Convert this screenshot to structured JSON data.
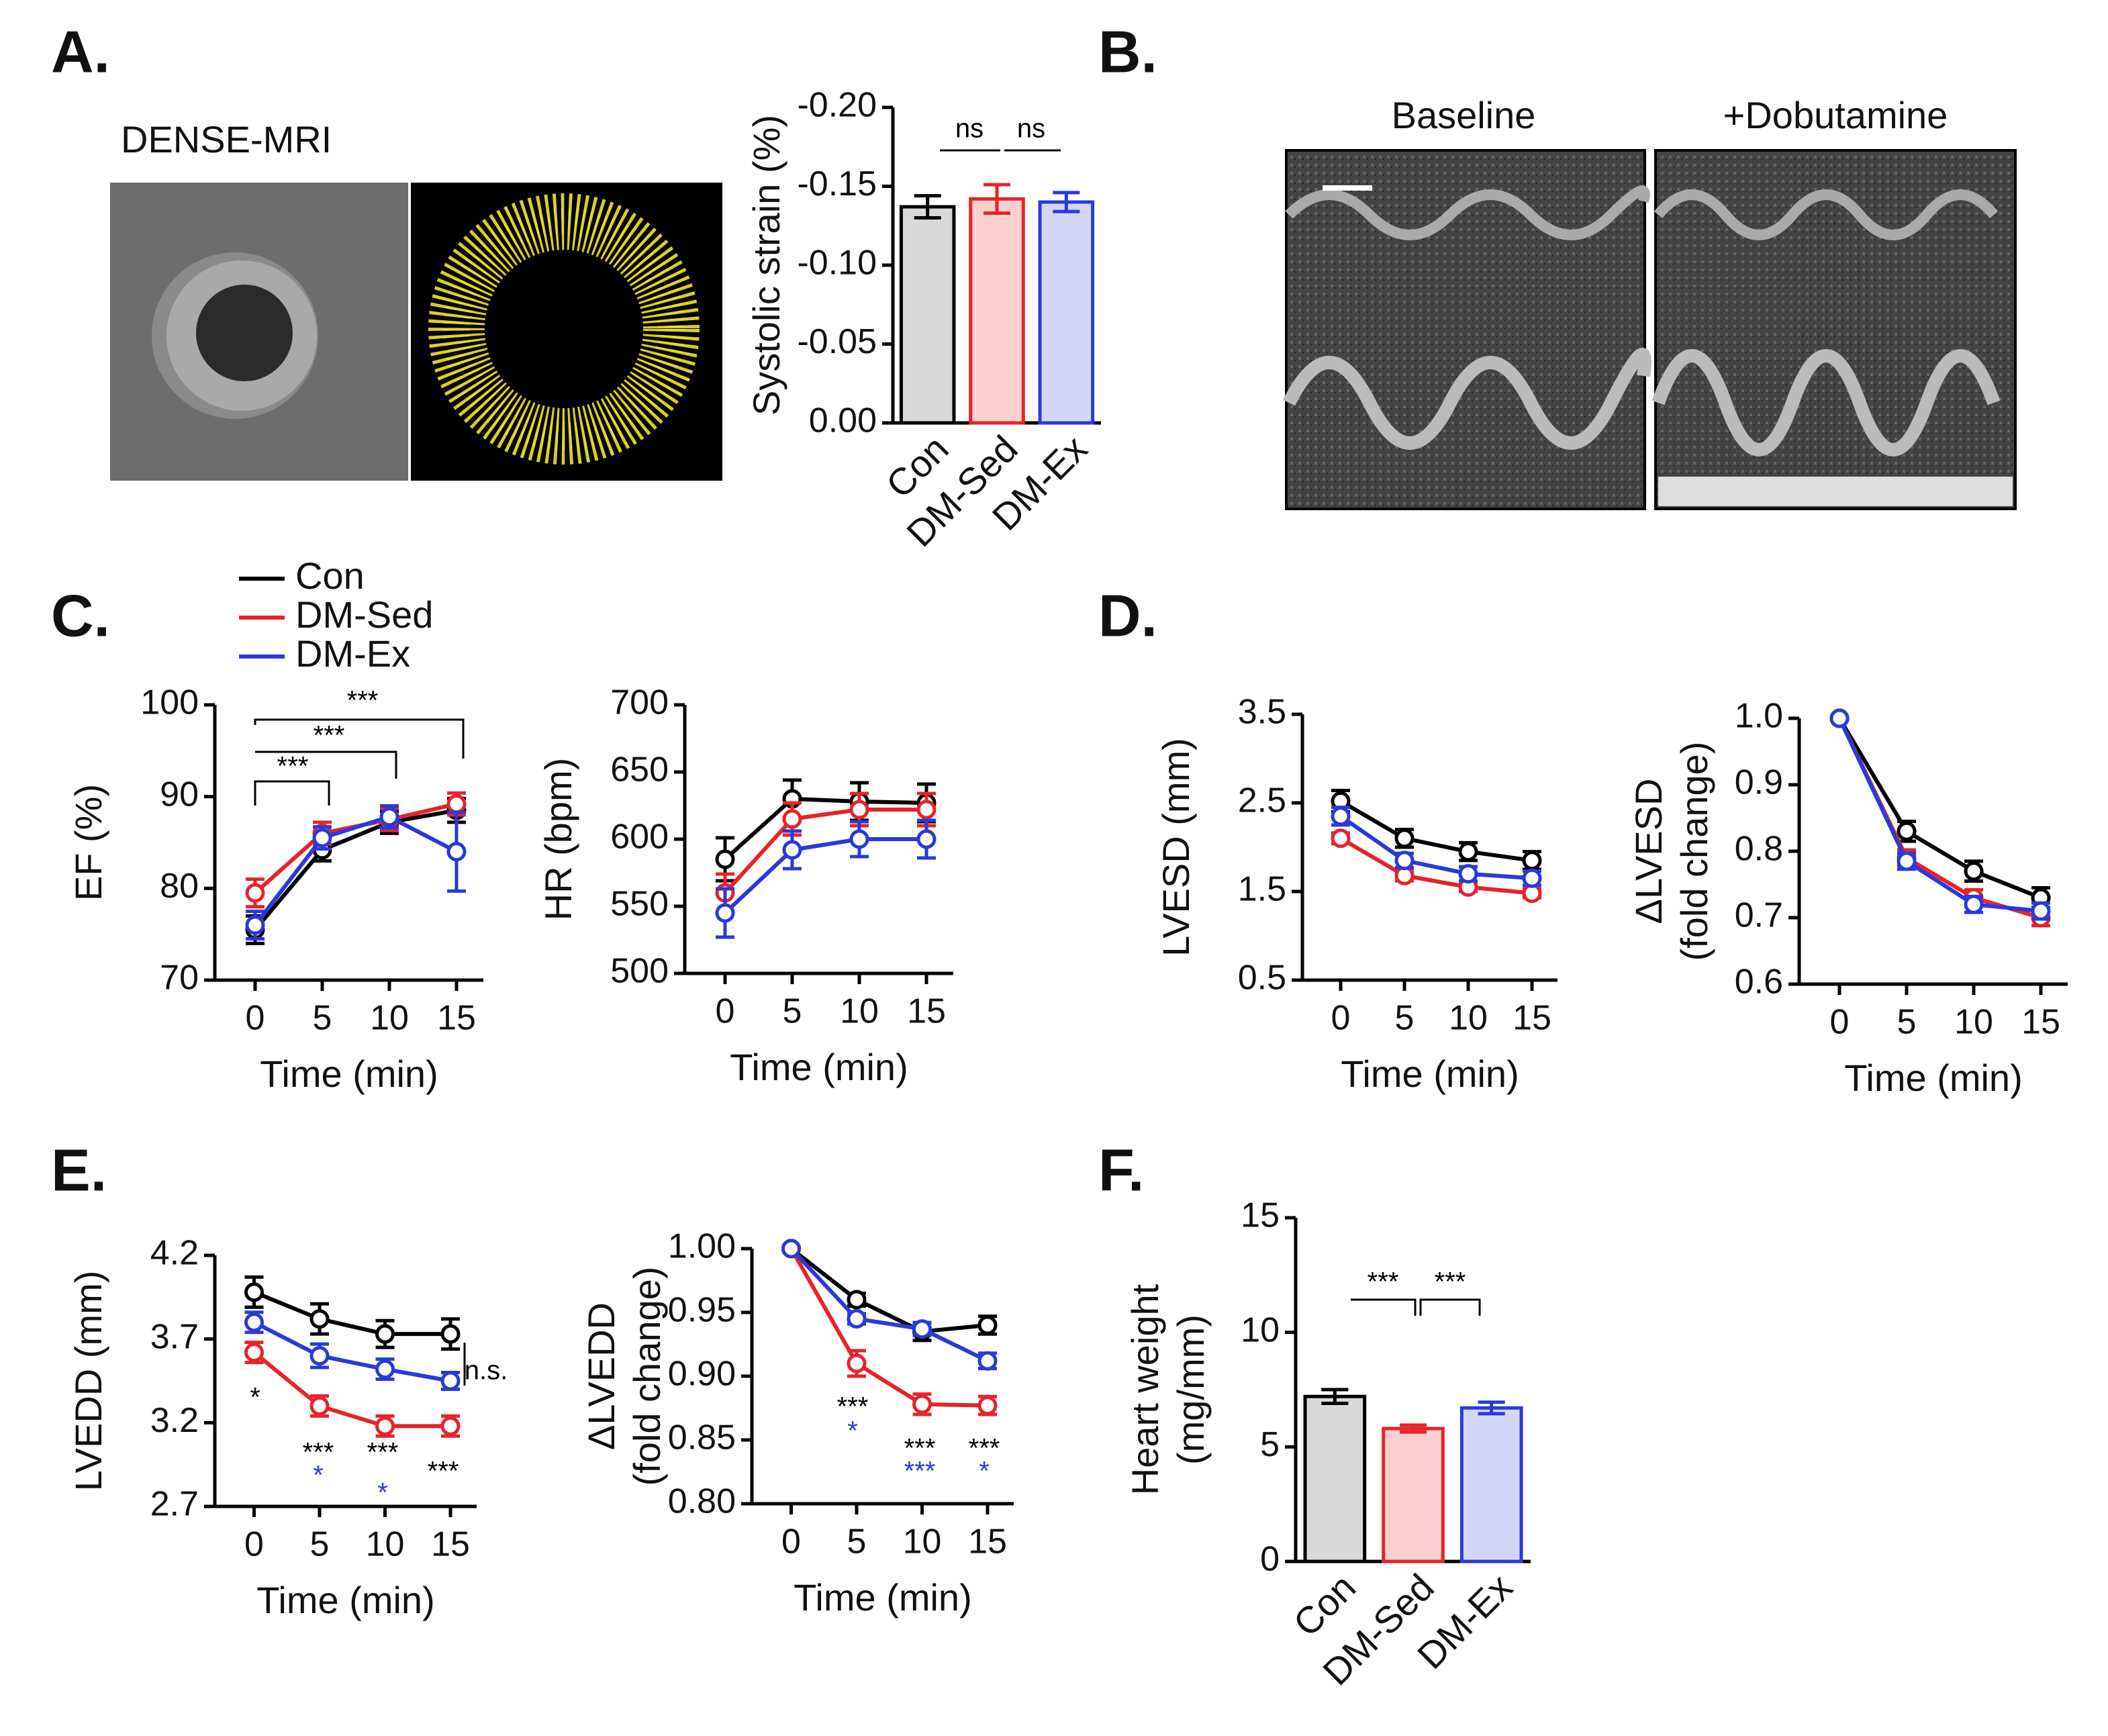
{
  "figure": {
    "panels": [
      "A.",
      "B.",
      "C.",
      "D.",
      "E.",
      "F."
    ],
    "mri_label": "DENSE-MRI",
    "echo_labels": [
      "Baseline",
      "+Dobutamine"
    ]
  },
  "chart_data": [
    {
      "type": "bar",
      "ylabel": [
        "Systolic strain (%)"
      ],
      "categories": [
        "Con",
        "DM-Sed",
        "DM-Ex"
      ],
      "values": [
        -0.137,
        -0.142,
        -0.14
      ],
      "errors": [
        0.007,
        0.009,
        0.006
      ],
      "colors": [
        "#000000",
        "#e8232b",
        "#2a3ad8"
      ],
      "fills": [
        "#d9d9d9",
        "#f9cfd0",
        "#d3d6f7"
      ],
      "ylim": [
        0,
        -0.2
      ],
      "yticks": [
        {
          "value": 0,
          "label": "0.00"
        },
        {
          "value": -0.05,
          "label": "-0.05"
        },
        {
          "value": -0.1,
          "label": "-0.10"
        },
        {
          "value": -0.15,
          "label": "-0.15"
        },
        {
          "value": -0.2,
          "label": "-0.20"
        }
      ],
      "annotations": [
        {
          "text": "ns",
          "color": "#000000"
        },
        {
          "text": "ns",
          "color": "#000000"
        }
      ]
    },
    {
      "type": "line",
      "ylabel": [
        "EF (%)"
      ],
      "xlabel": "Time (min)",
      "legend": true,
      "x": [
        0,
        5,
        10,
        15
      ],
      "xlim": [
        -3,
        17
      ],
      "xticks": [
        0,
        5,
        10,
        15
      ],
      "ylim": [
        70,
        100
      ],
      "yticks": [
        70,
        80,
        90,
        100
      ],
      "series": [
        {
          "name": "Con",
          "color": "#000000",
          "values": [
            75.5,
            84.2,
            87.2,
            88.5
          ],
          "errors": [
            1.5,
            1.2,
            1.2,
            1.3
          ]
        },
        {
          "name": "DM-Sed",
          "color": "#e8232b",
          "values": [
            79.5,
            86,
            87.5,
            89.2
          ],
          "errors": [
            1.5,
            1.2,
            1.2,
            1.2
          ]
        },
        {
          "name": "DM-Ex",
          "color": "#2a3ad8",
          "values": [
            76,
            85.5,
            87.8,
            84
          ],
          "errors": [
            1.5,
            1.2,
            1.2,
            4.3
          ]
        }
      ],
      "annotations": [
        {
          "text": "***",
          "color": "#000000"
        },
        {
          "text": "***",
          "color": "#000000"
        },
        {
          "text": "***",
          "color": "#000000"
        }
      ]
    },
    {
      "type": "line",
      "ylabel": [
        "HR (bpm)"
      ],
      "xlabel": "Time (min)",
      "x": [
        0,
        5,
        10,
        15
      ],
      "xlim": [
        -3,
        17
      ],
      "xticks": [
        0,
        5,
        10,
        15
      ],
      "ylim": [
        500,
        700
      ],
      "yticks": [
        500,
        550,
        600,
        650,
        700
      ],
      "series": [
        {
          "name": "Con",
          "color": "#000000",
          "values": [
            585,
            630,
            628,
            627
          ],
          "errors": [
            16,
            14,
            14,
            14
          ]
        },
        {
          "name": "DM-Sed",
          "color": "#e8232b",
          "values": [
            560,
            615,
            622,
            622
          ],
          "errors": [
            14,
            12,
            12,
            12
          ]
        },
        {
          "name": "DM-Ex",
          "color": "#2a3ad8",
          "values": [
            545,
            592,
            600,
            600
          ],
          "errors": [
            18,
            14,
            13,
            14
          ]
        }
      ]
    },
    {
      "type": "line",
      "ylabel": [
        "LVESD (mm)"
      ],
      "xlabel": "Time (min)",
      "x": [
        0,
        5,
        10,
        15
      ],
      "xlim": [
        -3,
        17
      ],
      "xticks": [
        0,
        5,
        10,
        15
      ],
      "ylim": [
        0.5,
        3.5
      ],
      "yticks": [
        0.5,
        1.5,
        2.5,
        3.5
      ],
      "series": [
        {
          "name": "Con",
          "color": "#000000",
          "values": [
            2.52,
            2.1,
            1.95,
            1.85
          ],
          "errors": [
            0.12,
            0.1,
            0.1,
            0.1
          ]
        },
        {
          "name": "DM-Sed",
          "color": "#e8232b",
          "values": [
            2.1,
            1.68,
            1.55,
            1.48
          ],
          "errors": [
            0.06,
            0.06,
            0.05,
            0.05
          ]
        },
        {
          "name": "DM-Ex",
          "color": "#2a3ad8",
          "values": [
            2.35,
            1.85,
            1.7,
            1.65
          ],
          "errors": [
            0.1,
            0.08,
            0.08,
            0.08
          ]
        }
      ]
    },
    {
      "type": "line",
      "ylabel": [
        "ΔLVESD",
        "(fold change)"
      ],
      "xlabel": "Time (min)",
      "x": [
        0,
        5,
        10,
        15
      ],
      "xlim": [
        -3,
        17
      ],
      "xticks": [
        0,
        5,
        10,
        15
      ],
      "ylim": [
        0.6,
        1.0
      ],
      "yticks": [
        0.6,
        0.7,
        0.8,
        0.9,
        {
          "value": 1,
          "label": "1.0"
        }
      ],
      "series": [
        {
          "name": "Con",
          "color": "#000000",
          "values": [
            1,
            0.83,
            0.77,
            0.73
          ],
          "errors": [
            0,
            0.015,
            0.015,
            0.015
          ]
        },
        {
          "name": "DM-Sed",
          "color": "#e8232b",
          "values": [
            1,
            0.79,
            0.73,
            0.7
          ],
          "errors": [
            0,
            0.012,
            0.012,
            0.012
          ]
        },
        {
          "name": "DM-Ex",
          "color": "#2a3ad8",
          "values": [
            1,
            0.785,
            0.72,
            0.71
          ],
          "errors": [
            0,
            0.012,
            0.012,
            0.012
          ]
        }
      ]
    },
    {
      "type": "line",
      "ylabel": [
        "LVEDD (mm)"
      ],
      "xlabel": "Time (min)",
      "x": [
        0,
        5,
        10,
        15
      ],
      "xlim": [
        -3,
        17
      ],
      "xticks": [
        0,
        5,
        10,
        15
      ],
      "ylim": [
        2.7,
        4.2
      ],
      "yticks": [
        2.7,
        3.2,
        3.7,
        4.2
      ],
      "series": [
        {
          "name": "Con",
          "color": "#000000",
          "values": [
            3.98,
            3.82,
            3.73,
            3.73
          ],
          "errors": [
            0.09,
            0.09,
            0.08,
            0.09
          ]
        },
        {
          "name": "DM-Sed",
          "color": "#e8232b",
          "values": [
            3.62,
            3.3,
            3.18,
            3.18
          ],
          "errors": [
            0.06,
            0.06,
            0.06,
            0.06
          ]
        },
        {
          "name": "DM-Ex",
          "color": "#2a3ad8",
          "values": [
            3.8,
            3.6,
            3.52,
            3.45
          ],
          "errors": [
            0.06,
            0.07,
            0.06,
            0.05
          ]
        }
      ],
      "annotations": [
        {
          "text": "*",
          "color": "#000000"
        },
        {
          "text": "***",
          "color": "#000000"
        },
        {
          "text": "***",
          "color": "#000000"
        },
        {
          "text": "***",
          "color": "#000000"
        },
        {
          "text": "*",
          "color": "#2a3ad8"
        },
        {
          "text": "*",
          "color": "#2a3ad8"
        },
        {
          "text": "n.s.",
          "color": "#000000"
        }
      ]
    },
    {
      "type": "line",
      "ylabel": [
        "ΔLVEDD",
        "(fold change)"
      ],
      "xlabel": "Time (min)",
      "x": [
        0,
        5,
        10,
        15
      ],
      "xlim": [
        -3,
        17
      ],
      "xticks": [
        0,
        5,
        10,
        15
      ],
      "ylim": [
        0.8,
        1.0
      ],
      "yticks": [
        {
          "value": 0.8,
          "label": "0.80"
        },
        0.85,
        {
          "value": 0.9,
          "label": "0.90"
        },
        0.95,
        {
          "value": 1,
          "label": "1.00"
        }
      ],
      "series": [
        {
          "name": "Con",
          "color": "#000000",
          "values": [
            1,
            0.96,
            0.935,
            0.94
          ],
          "errors": [
            0,
            0.005,
            0.007,
            0.007
          ]
        },
        {
          "name": "DM-Sed",
          "color": "#e8232b",
          "values": [
            1,
            0.91,
            0.878,
            0.877
          ],
          "errors": [
            0,
            0.01,
            0.008,
            0.007
          ]
        },
        {
          "name": "DM-Ex",
          "color": "#2a3ad8",
          "values": [
            1,
            0.945,
            0.937,
            0.912
          ],
          "errors": [
            0,
            0.004,
            0.005,
            0.006
          ]
        }
      ],
      "annotations": [
        {
          "text": "***",
          "color": "#000000"
        },
        {
          "text": "***",
          "color": "#000000"
        },
        {
          "text": "***",
          "color": "#000000"
        },
        {
          "text": "*",
          "color": "#2a3ad8"
        },
        {
          "text": "***",
          "color": "#2a3ad8"
        },
        {
          "text": "*",
          "color": "#2a3ad8"
        }
      ]
    },
    {
      "type": "bar",
      "ylabel": [
        "Heart weight",
        "(mg/mm)"
      ],
      "categories": [
        "Con",
        "DM-Sed",
        "DM-Ex"
      ],
      "values": [
        7.2,
        5.8,
        6.7
      ],
      "errors": [
        0.3,
        0.15,
        0.25
      ],
      "colors": [
        "#000000",
        "#e8232b",
        "#2a3ad8"
      ],
      "fills": [
        "#d9d9d9",
        "#f9cfd0",
        "#d3d6f7"
      ],
      "ylim": [
        0,
        15
      ],
      "yticks": [
        0,
        5,
        10,
        15
      ],
      "annotations": [
        {
          "text": "***",
          "color": "#000000"
        },
        {
          "text": "***",
          "color": "#000000"
        }
      ]
    }
  ]
}
